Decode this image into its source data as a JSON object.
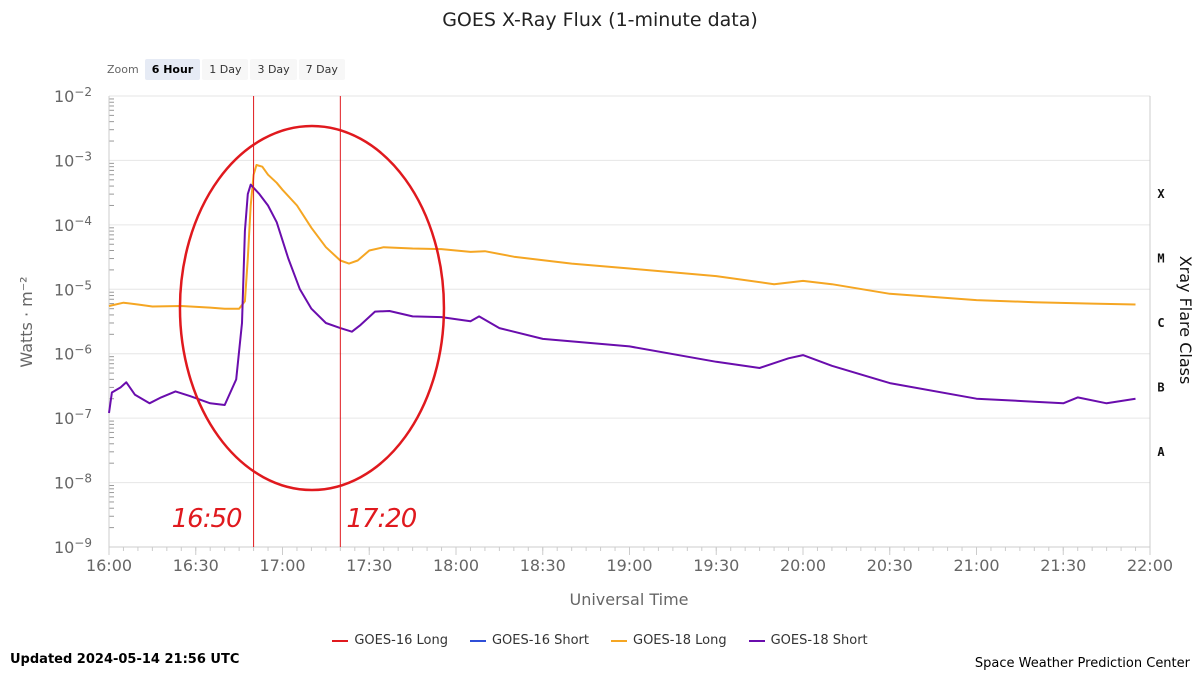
{
  "chart_data": {
    "type": "line",
    "title": "GOES X-Ray Flux (1-minute data)",
    "xlabel": "Universal Time",
    "ylabel": "Watts · m⁻²",
    "y2label": "Xray Flare Class",
    "yscale": "log",
    "ylim": [
      1e-09,
      0.01
    ],
    "xlim": [
      "16:00",
      "22:00"
    ],
    "y_ticks": [
      {
        "value": 0.01,
        "base": "10",
        "exp": "−2"
      },
      {
        "value": 0.001,
        "base": "10",
        "exp": "−3"
      },
      {
        "value": 0.0001,
        "base": "10",
        "exp": "−4"
      },
      {
        "value": 1e-05,
        "base": "10",
        "exp": "−5"
      },
      {
        "value": 1e-06,
        "base": "10",
        "exp": "−6"
      },
      {
        "value": 1e-07,
        "base": "10",
        "exp": "−7"
      },
      {
        "value": 1e-08,
        "base": "10",
        "exp": "−8"
      },
      {
        "value": 1e-09,
        "base": "10",
        "exp": "−9"
      }
    ],
    "x_ticks": [
      "16:00",
      "16:30",
      "17:00",
      "17:30",
      "18:00",
      "18:30",
      "19:00",
      "19:30",
      "20:00",
      "20:30",
      "21:00",
      "21:30",
      "22:00"
    ],
    "flare_classes": [
      {
        "label": "X",
        "value": 0.0003
      },
      {
        "label": "M",
        "value": 3e-05
      },
      {
        "label": "C",
        "value": 3e-06
      },
      {
        "label": "B",
        "value": 3e-07
      },
      {
        "label": "A",
        "value": 3e-08
      }
    ],
    "series": [
      {
        "name": "GOES-18 Long",
        "color": "#f5a623",
        "points": [
          [
            "16:00",
            5.5e-06
          ],
          [
            "16:05",
            6.2e-06
          ],
          [
            "16:10",
            5.8e-06
          ],
          [
            "16:15",
            5.4e-06
          ],
          [
            "16:25",
            5.5e-06
          ],
          [
            "16:35",
            5.2e-06
          ],
          [
            "16:40",
            5e-06
          ],
          [
            "16:45",
            5e-06
          ],
          [
            "16:47",
            6.5e-06
          ],
          [
            "16:48",
            3e-05
          ],
          [
            "16:49",
            0.0002
          ],
          [
            "16:50",
            0.0006
          ],
          [
            "16:51",
            0.00085
          ],
          [
            "16:53",
            0.0008
          ],
          [
            "16:55",
            0.0006
          ],
          [
            "16:58",
            0.00045
          ],
          [
            "17:00",
            0.00035
          ],
          [
            "17:05",
            0.0002
          ],
          [
            "17:10",
            9e-05
          ],
          [
            "17:15",
            4.5e-05
          ],
          [
            "17:20",
            2.8e-05
          ],
          [
            "17:23",
            2.5e-05
          ],
          [
            "17:26",
            2.8e-05
          ],
          [
            "17:30",
            4e-05
          ],
          [
            "17:35",
            4.5e-05
          ],
          [
            "17:45",
            4.3e-05
          ],
          [
            "17:55",
            4.2e-05
          ],
          [
            "18:05",
            3.8e-05
          ],
          [
            "18:10",
            3.9e-05
          ],
          [
            "18:20",
            3.2e-05
          ],
          [
            "18:40",
            2.5e-05
          ],
          [
            "19:00",
            2.1e-05
          ],
          [
            "19:30",
            1.6e-05
          ],
          [
            "19:50",
            1.2e-05
          ],
          [
            "20:00",
            1.35e-05
          ],
          [
            "20:10",
            1.2e-05
          ],
          [
            "20:30",
            8.5e-06
          ],
          [
            "21:00",
            6.8e-06
          ],
          [
            "21:20",
            6.3e-06
          ],
          [
            "21:40",
            6e-06
          ],
          [
            "21:55",
            5.8e-06
          ]
        ]
      },
      {
        "name": "GOES-18 Short",
        "color": "#6a0dad",
        "points": [
          [
            "16:00",
            1.2e-07
          ],
          [
            "16:01",
            2.5e-07
          ],
          [
            "16:04",
            3e-07
          ],
          [
            "16:06",
            3.6e-07
          ],
          [
            "16:09",
            2.3e-07
          ],
          [
            "16:14",
            1.7e-07
          ],
          [
            "16:18",
            2.1e-07
          ],
          [
            "16:23",
            2.6e-07
          ],
          [
            "16:28",
            2.2e-07
          ],
          [
            "16:35",
            1.7e-07
          ],
          [
            "16:40",
            1.6e-07
          ],
          [
            "16:44",
            4e-07
          ],
          [
            "16:46",
            3e-06
          ],
          [
            "16:47",
            8e-05
          ],
          [
            "16:48",
            0.0003
          ],
          [
            "16:49",
            0.00042
          ],
          [
            "16:52",
            0.0003
          ],
          [
            "16:55",
            0.0002
          ],
          [
            "16:58",
            0.00011
          ],
          [
            "17:02",
            3e-05
          ],
          [
            "17:06",
            1e-05
          ],
          [
            "17:10",
            5e-06
          ],
          [
            "17:15",
            3e-06
          ],
          [
            "17:20",
            2.5e-06
          ],
          [
            "17:24",
            2.2e-06
          ],
          [
            "17:27",
            2.8e-06
          ],
          [
            "17:32",
            4.5e-06
          ],
          [
            "17:37",
            4.6e-06
          ],
          [
            "17:45",
            3.8e-06
          ],
          [
            "17:55",
            3.7e-06
          ],
          [
            "18:05",
            3.2e-06
          ],
          [
            "18:08",
            3.8e-06
          ],
          [
            "18:15",
            2.5e-06
          ],
          [
            "18:30",
            1.7e-06
          ],
          [
            "19:00",
            1.3e-06
          ],
          [
            "19:30",
            7.5e-07
          ],
          [
            "19:45",
            6e-07
          ],
          [
            "19:55",
            8.5e-07
          ],
          [
            "20:00",
            9.5e-07
          ],
          [
            "20:10",
            6.5e-07
          ],
          [
            "20:30",
            3.5e-07
          ],
          [
            "21:00",
            2e-07
          ],
          [
            "21:20",
            1.8e-07
          ],
          [
            "21:30",
            1.7e-07
          ],
          [
            "21:35",
            2.1e-07
          ],
          [
            "21:45",
            1.7e-07
          ],
          [
            "21:55",
            2e-07
          ]
        ]
      }
    ],
    "annotations": [
      {
        "text": "16:50",
        "time": "16:50",
        "color": "#e0191e"
      },
      {
        "text": "17:20",
        "time": "17:20",
        "color": "#e0191e"
      }
    ]
  },
  "zoom": {
    "label": "Zoom",
    "buttons": [
      "6 Hour",
      "1 Day",
      "3 Day",
      "7 Day"
    ],
    "active": "6 Hour"
  },
  "legend": [
    {
      "label": "GOES-16 Long",
      "color": "#e0191e"
    },
    {
      "label": "GOES-16 Short",
      "color": "#2f4fd8"
    },
    {
      "label": "GOES-18 Long",
      "color": "#f5a623"
    },
    {
      "label": "GOES-18 Short",
      "color": "#6a0dad"
    }
  ],
  "footer": {
    "updated": "Updated 2024-05-14 21:56 UTC",
    "credit": "Space Weather Prediction Center"
  }
}
